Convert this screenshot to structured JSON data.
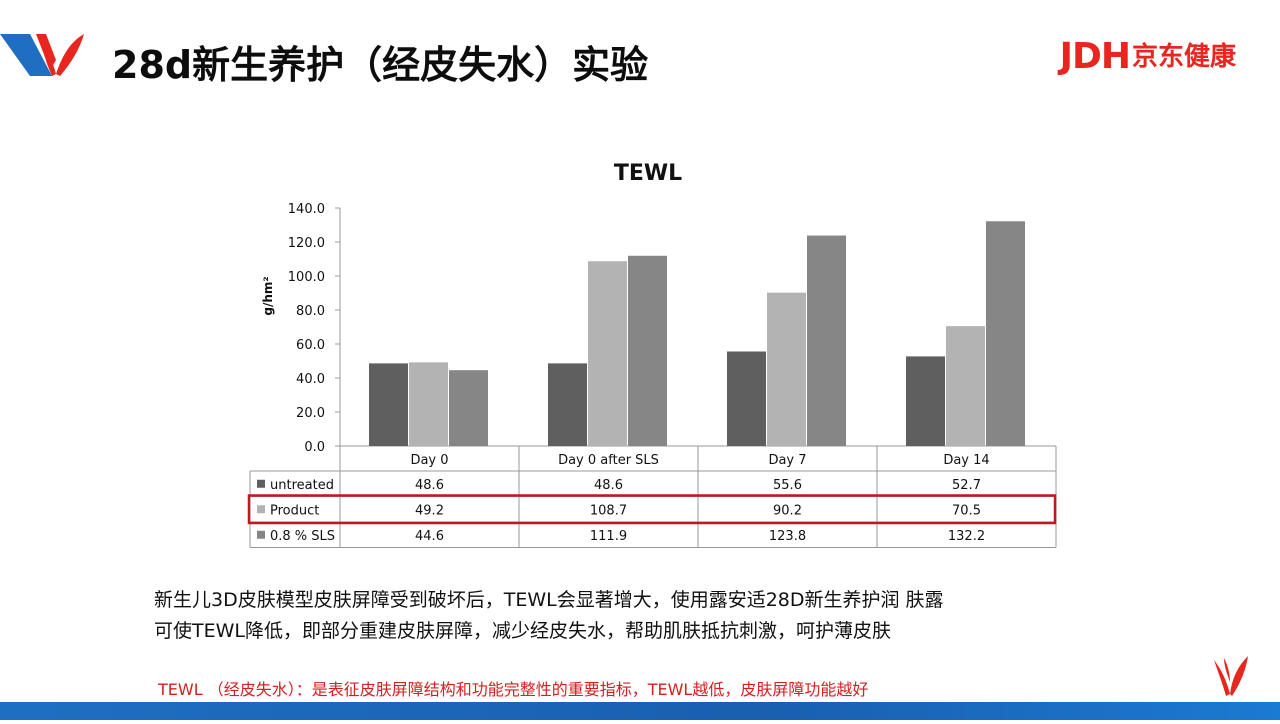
{
  "slide": {
    "title": "28d新生养护（经皮失水）实验",
    "brand_logo_text": "JDH",
    "brand_logo_cn": "京东健康",
    "description_lines": [
      "新生儿3D皮肤模型皮肤屏障受到破坏后，TEWL会显著增大，使用露安适28D新生养护润 肤露",
      "可使TEWL降低，即部分重建皮肤屏障，减少经皮失水，帮助肌肤抵抗刺激，呵护薄皮肤"
    ],
    "note": "TEWL （经皮失水）：是表征皮肤屏障结构和功能完整性的重要指标，TEWL越低，皮肤屏障功能越好"
  },
  "colors": {
    "brand_red": "#e8261f",
    "brand_blue": "#1e6fc2",
    "highlight_box": "#c0181f",
    "note_red": "#d62020"
  },
  "chart_data": {
    "type": "bar",
    "title": "TEWL",
    "xlabel": "",
    "ylabel": "g/hm²",
    "ylim": [
      0,
      140
    ],
    "yticks": [
      "0.0",
      "20.0",
      "40.0",
      "60.0",
      "80.0",
      "100.0",
      "120.0",
      "140.0"
    ],
    "grid": false,
    "legend": "data-table-below",
    "categories": [
      "Day 0",
      "Day 0 after SLS",
      "Day 7",
      "Day 14"
    ],
    "series": [
      {
        "name": "untreated",
        "values": [
          48.6,
          48.6,
          55.6,
          52.7
        ],
        "labels": [
          "48.6",
          "48.6",
          "55.6",
          "52.7"
        ],
        "color": "#5f5f5f"
      },
      {
        "name": "Product",
        "values": [
          49.2,
          108.7,
          90.2,
          70.5
        ],
        "labels": [
          "49.2",
          "108.7",
          "90.2",
          "70.5"
        ],
        "color": "#b3b3b3"
      },
      {
        "name": "0.8 % SLS",
        "values": [
          44.6,
          111.9,
          123.8,
          132.2
        ],
        "labels": [
          "44.6",
          "111.9",
          "123.8",
          "132.2"
        ],
        "color": "#868686"
      }
    ],
    "highlighted_series": "Product"
  }
}
